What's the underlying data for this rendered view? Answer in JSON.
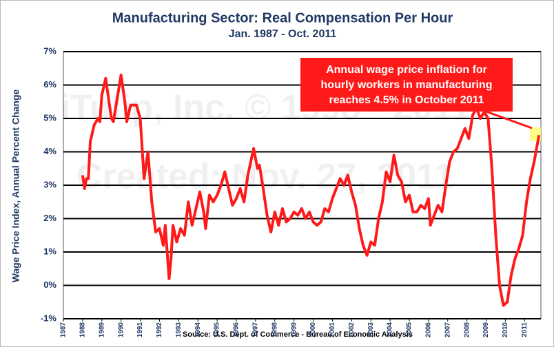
{
  "chart_data": {
    "type": "line",
    "title": "Manufacturing Sector: Real Compensation Per Hour",
    "subtitle": "Jan. 1987 - Oct. 2011",
    "y_label": "Wage Price Index, Annual Percent Change",
    "source": "Source: U.S. Dept. of Commerce - Bureau of Economic Analysis",
    "annotation": [
      "Annual wage price inflation for",
      "hourly workers in manufacturing",
      "reaches 4.5% in October 2011"
    ],
    "watermark": [
      "iTulip, Inc. © 1998 - 2011",
      "Created: Nov. 27, 2011"
    ],
    "color": "#ff1a1a",
    "grid": true,
    "xlim": [
      1987,
      2011.85
    ],
    "xticks": [
      1987,
      1988,
      1989,
      1990,
      1991,
      1992,
      1993,
      1994,
      1995,
      1996,
      1997,
      1998,
      1999,
      2000,
      2001,
      2002,
      2003,
      2004,
      2005,
      2006,
      2007,
      2008,
      2009,
      2010,
      2011
    ],
    "ylim": [
      -1,
      7
    ],
    "yticks": [
      {
        "value": -1,
        "label": "-1%"
      },
      {
        "value": 0,
        "label": "0%"
      },
      {
        "value": 1,
        "label": "1%"
      },
      {
        "value": 2,
        "label": "2%"
      },
      {
        "value": 3,
        "label": "3%"
      },
      {
        "value": 4,
        "label": "4%"
      },
      {
        "value": 5,
        "label": "5%"
      },
      {
        "value": 6,
        "label": "6%"
      },
      {
        "value": 7,
        "label": "7%"
      }
    ],
    "x": [
      1988.0,
      1988.1,
      1988.2,
      1988.3,
      1988.4,
      1988.6,
      1988.8,
      1988.9,
      1989.0,
      1989.2,
      1989.3,
      1989.5,
      1989.6,
      1989.8,
      1990.0,
      1990.2,
      1990.3,
      1990.5,
      1990.8,
      1991.0,
      1991.2,
      1991.4,
      1991.6,
      1991.8,
      1992.0,
      1992.2,
      1992.3,
      1992.5,
      1992.6,
      1992.7,
      1992.9,
      1993.1,
      1993.3,
      1993.5,
      1993.7,
      1993.9,
      1994.1,
      1994.3,
      1994.4,
      1994.6,
      1994.8,
      1995.0,
      1995.2,
      1995.4,
      1995.6,
      1995.8,
      1996.0,
      1996.2,
      1996.4,
      1996.6,
      1996.9,
      1997.1,
      1997.2,
      1997.4,
      1997.6,
      1997.8,
      1998.0,
      1998.2,
      1998.4,
      1998.6,
      1998.8,
      1999.0,
      1999.2,
      1999.4,
      1999.6,
      1999.8,
      2000.0,
      2000.2,
      2000.4,
      2000.6,
      2000.8,
      2001.0,
      2001.2,
      2001.4,
      2001.6,
      2001.8,
      2002.0,
      2002.2,
      2002.4,
      2002.6,
      2002.8,
      2003.0,
      2003.2,
      2003.4,
      2003.6,
      2003.8,
      2004.0,
      2004.2,
      2004.4,
      2004.6,
      2004.8,
      2005.0,
      2005.2,
      2005.4,
      2005.6,
      2005.8,
      2006.0,
      2006.1,
      2006.3,
      2006.5,
      2006.7,
      2006.9,
      2007.1,
      2007.3,
      2007.5,
      2007.7,
      2007.9,
      2008.1,
      2008.3,
      2008.5,
      2008.7,
      2008.9,
      2009.1,
      2009.3,
      2009.5,
      2009.7,
      2009.9,
      2010.1,
      2010.3,
      2010.5,
      2010.7,
      2010.9,
      2011.1,
      2011.3,
      2011.5,
      2011.75
    ],
    "values": [
      3.3,
      2.9,
      3.2,
      3.2,
      4.3,
      4.8,
      5.0,
      4.9,
      5.7,
      6.2,
      5.8,
      5.0,
      4.9,
      5.6,
      6.3,
      5.5,
      4.9,
      5.4,
      5.4,
      5.0,
      3.2,
      4.0,
      2.5,
      1.6,
      1.7,
      1.2,
      1.8,
      0.2,
      0.8,
      1.8,
      1.3,
      1.7,
      1.5,
      2.5,
      1.8,
      2.3,
      2.8,
      2.2,
      1.7,
      2.7,
      2.5,
      2.7,
      3.0,
      3.4,
      2.9,
      2.4,
      2.6,
      2.9,
      2.5,
      3.3,
      4.1,
      3.5,
      3.6,
      2.9,
      2.1,
      1.6,
      2.2,
      1.8,
      2.3,
      1.9,
      2.0,
      2.2,
      2.1,
      2.3,
      2.0,
      2.2,
      1.9,
      1.8,
      1.9,
      2.3,
      2.2,
      2.6,
      2.9,
      3.2,
      3.0,
      3.3,
      2.8,
      2.4,
      1.7,
      1.2,
      0.9,
      1.3,
      1.2,
      2.0,
      2.5,
      3.4,
      3.1,
      3.9,
      3.3,
      3.1,
      2.5,
      2.7,
      2.2,
      2.2,
      2.4,
      2.3,
      2.6,
      1.8,
      2.1,
      2.4,
      2.2,
      3.0,
      3.7,
      4.0,
      4.1,
      4.4,
      4.7,
      4.4,
      5.1,
      5.3,
      5.0,
      5.2,
      5.0,
      3.5,
      1.5,
      0.0,
      -0.6,
      -0.5,
      0.3,
      0.8,
      1.1,
      1.5,
      2.5,
      3.2,
      3.7,
      4.5
    ]
  }
}
